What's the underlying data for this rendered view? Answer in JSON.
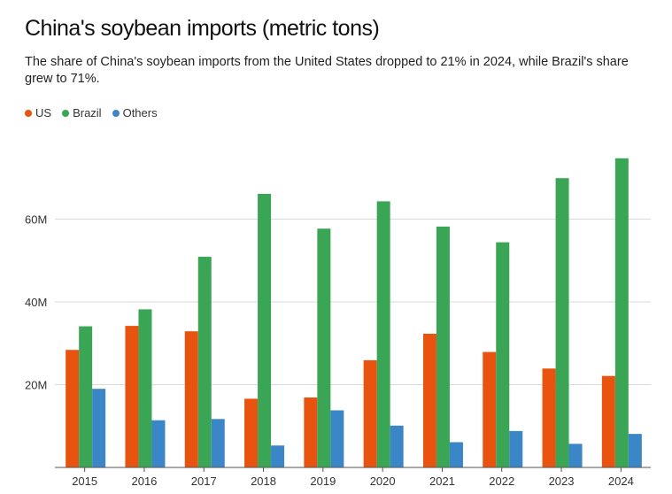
{
  "title": "China's soybean imports (metric tons)",
  "subtitle": "The share of China's soybean imports from the United States dropped to 21% in 2024, while Brazil's share grew to 71%.",
  "legend": [
    {
      "name": "US",
      "color": "#e8540f"
    },
    {
      "name": "Brazil",
      "color": "#3aa655"
    },
    {
      "name": "Others",
      "color": "#3b86c6"
    }
  ],
  "chart_data": {
    "type": "bar",
    "title": "China's soybean imports (metric tons)",
    "categories": [
      "2015",
      "2016",
      "2017",
      "2018",
      "2019",
      "2020",
      "2021",
      "2022",
      "2023",
      "2024"
    ],
    "series": [
      {
        "name": "US",
        "color": "#e8540f",
        "values": [
          28.4,
          34.2,
          32.9,
          16.6,
          16.9,
          25.9,
          32.3,
          27.9,
          23.9,
          22.1
        ]
      },
      {
        "name": "Brazil",
        "color": "#3aa655",
        "values": [
          34.1,
          38.2,
          50.9,
          66.1,
          57.7,
          64.3,
          58.2,
          54.4,
          69.9,
          74.7
        ]
      },
      {
        "name": "Others",
        "color": "#3b86c6",
        "values": [
          19.0,
          11.4,
          11.7,
          5.3,
          13.8,
          10.1,
          6.1,
          8.8,
          5.7,
          8.1
        ]
      }
    ],
    "yticks": [
      20,
      40,
      60
    ],
    "ytick_labels": [
      "20M",
      "40M",
      "60M"
    ],
    "ylim": [
      0,
      80
    ],
    "xlabel": "",
    "ylabel": "",
    "grid": true,
    "legend_position": "top-left"
  }
}
